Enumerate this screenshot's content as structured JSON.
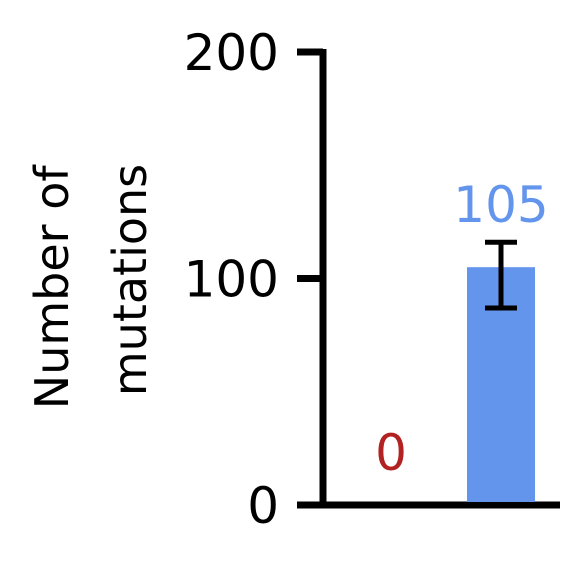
{
  "chart_data": {
    "type": "bar",
    "title": "",
    "xlabel": "",
    "ylabel_lines": [
      "Number of",
      "mutations"
    ],
    "ylim": [
      0,
      200
    ],
    "yticks": [
      0,
      100,
      200
    ],
    "ytick_labels": [
      "0",
      "100",
      "200"
    ],
    "grid": false,
    "legend": "none",
    "categories": [
      "",
      ""
    ],
    "values": [
      0,
      105
    ],
    "error_bars": [
      null,
      {
        "low": 87,
        "high": 116
      }
    ],
    "data_labels": [
      "0",
      "105"
    ],
    "colors": [
      "#b22222",
      "#6495ed"
    ],
    "label_colors": [
      "#b22222",
      "#6495ed"
    ]
  }
}
